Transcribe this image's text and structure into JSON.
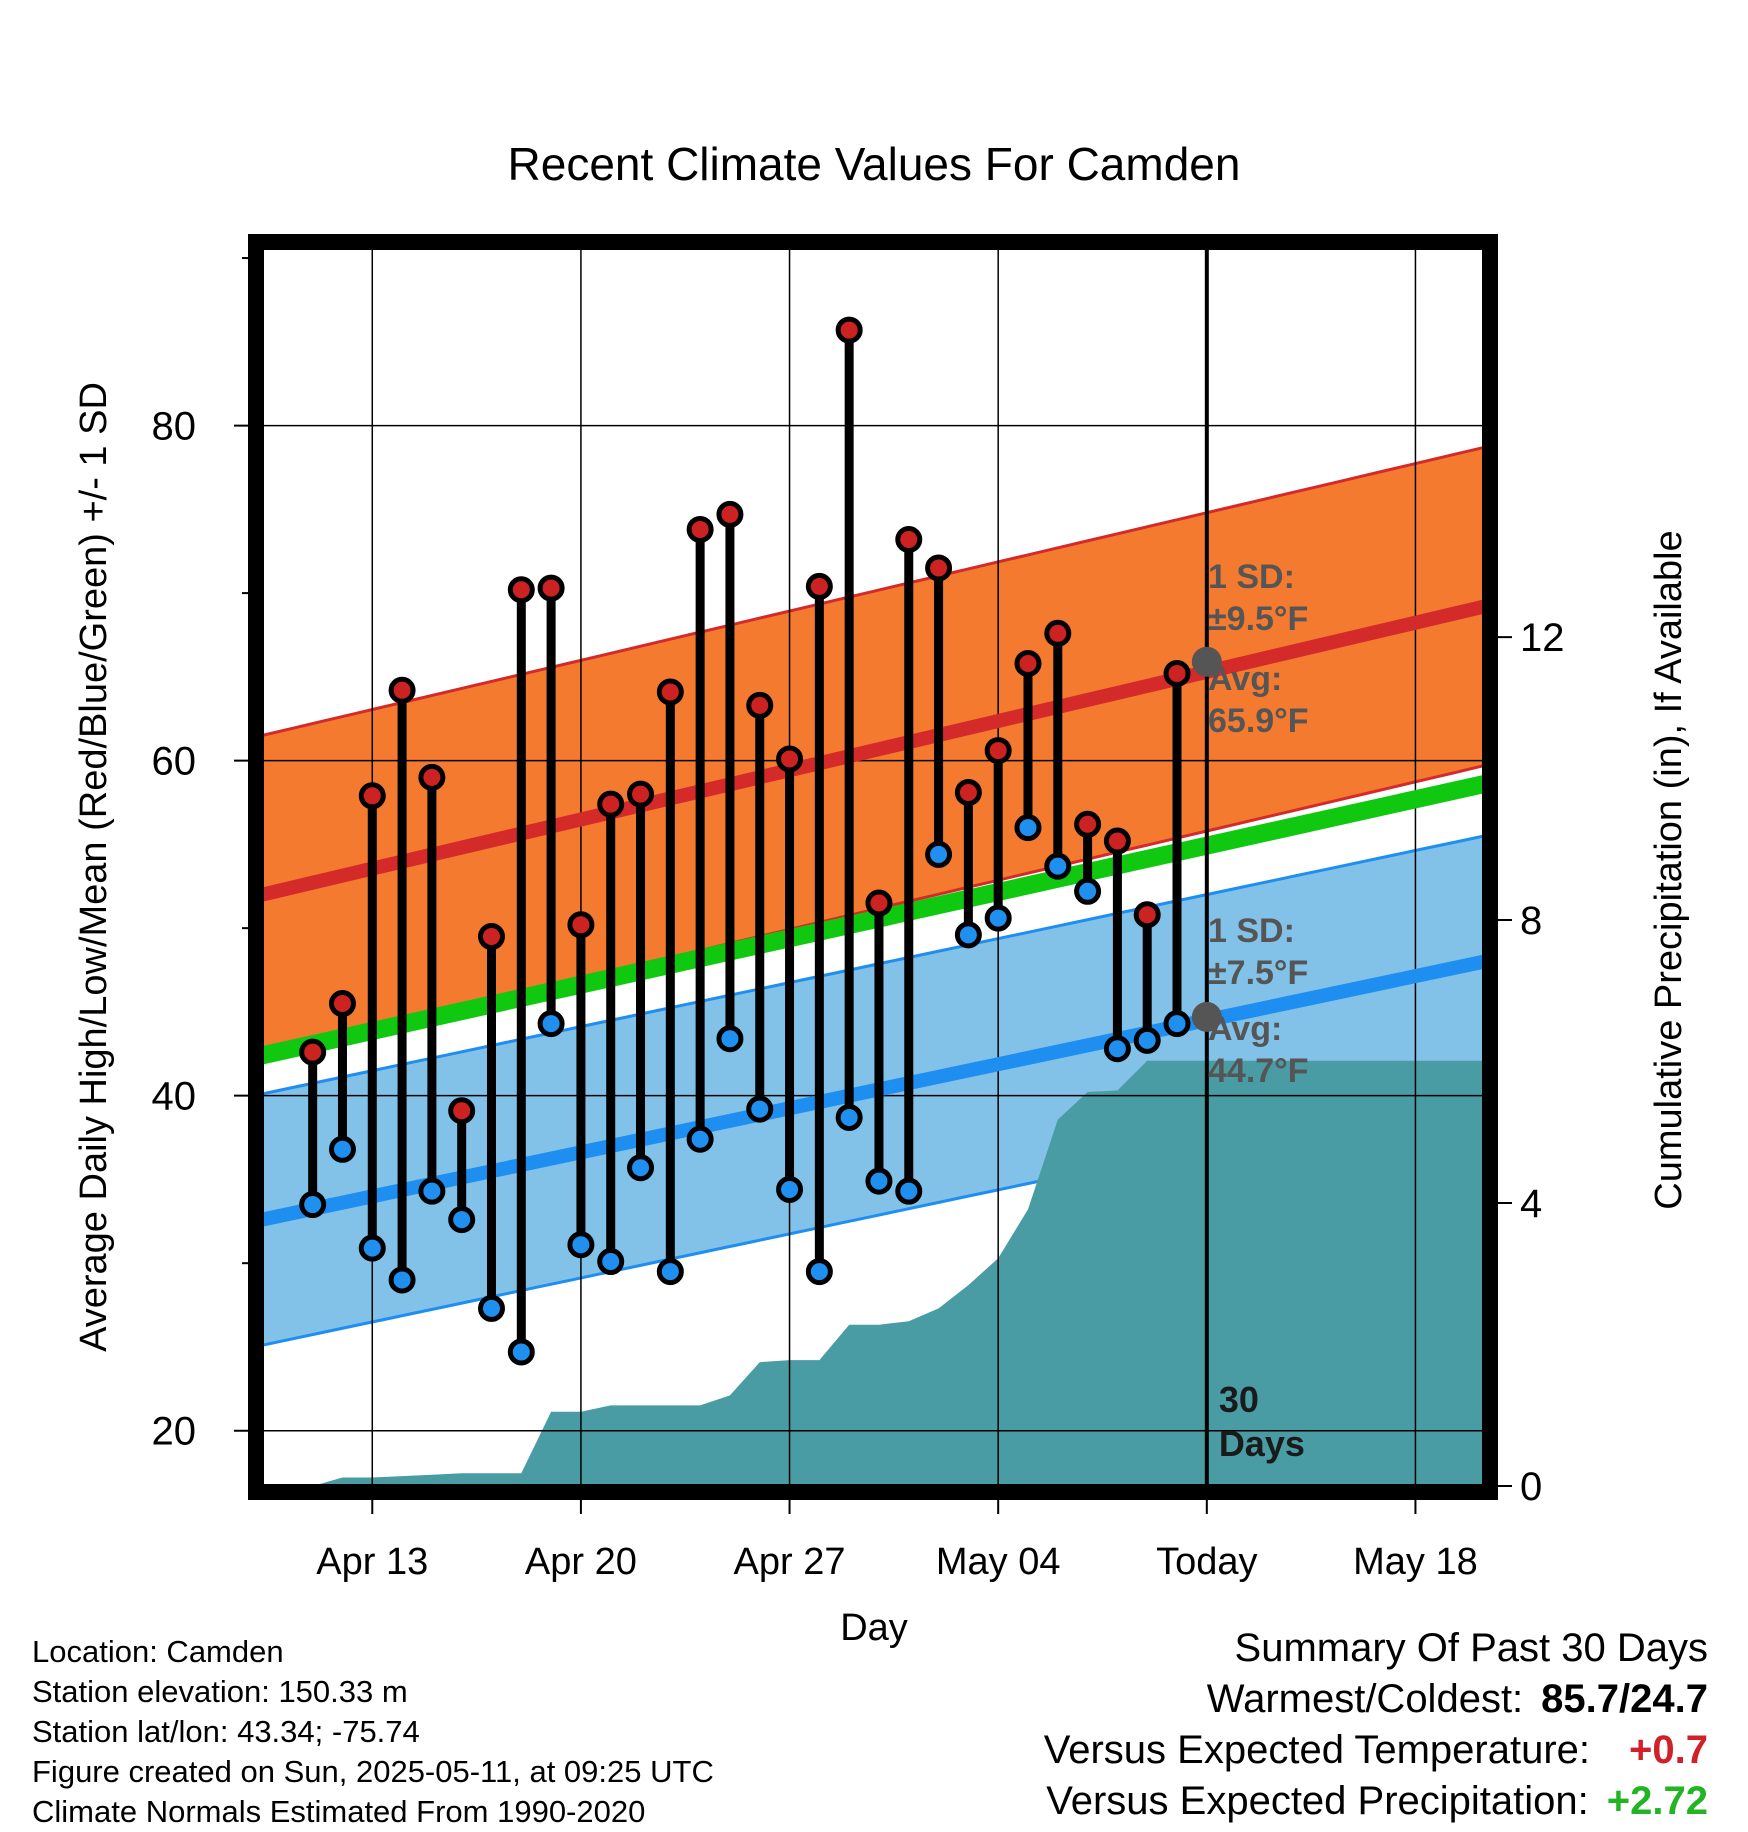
{
  "title": "Recent Climate Values For Camden",
  "xlabel": "Day",
  "ylabel_left": "Average Daily High/Low/Mean (Red/Blue/Green) +/- 1 SD",
  "ylabel_right": "Cumulative Precipitation (in), If Available",
  "today_label": "30 Days",
  "annotations": {
    "high_sd": "1 SD:",
    "high_sd_val": "±9.5°F",
    "high_avg": "Avg:",
    "high_avg_val": "65.9°F",
    "low_sd": "1 SD:",
    "low_sd_val": "±7.5°F",
    "low_avg": "Avg:",
    "low_avg_val": "44.7°F"
  },
  "footer": {
    "location": "Location: Camden",
    "elevation": "Station elevation: 150.33 m",
    "latlon": "Station lat/lon: 43.34; -75.74",
    "created": "Figure created on Sun, 2025-05-11, at 09:25 UTC",
    "normals": "Climate Normals Estimated From 1990-2020"
  },
  "summary": {
    "heading": "Summary Of Past 30 Days",
    "warm_cold_label": "Warmest/Coldest:",
    "warm_cold_value": "85.7/24.7",
    "temp_label": "Versus Expected Temperature:",
    "temp_value": "+0.7",
    "precip_label": "Versus Expected Precipitation:",
    "precip_value": "+2.72"
  },
  "colors": {
    "high_band": "#f47a30",
    "high_line": "#d42a2a",
    "low_band": "#82c2e8",
    "low_line": "#1e8ef0",
    "mean_line": "#10c810",
    "precip": "#4a9ca4",
    "high_dot": "#cc2222",
    "low_dot": "#2090f0",
    "annotation": "#555555"
  },
  "chart_data": {
    "type": "line",
    "x_axis": {
      "tick_labels": [
        "Apr 13",
        "Apr 20",
        "Apr 27",
        "May 04",
        "Today",
        "May 18"
      ],
      "tick_days": [
        3,
        10,
        17,
        24,
        31,
        38
      ],
      "range_days": [
        -0.7,
        40.3
      ]
    },
    "y_left": {
      "range": [
        16.7,
        90.6
      ],
      "ticks": [
        20,
        40,
        60,
        80
      ],
      "minor_ticks": [
        30,
        50,
        70,
        90
      ]
    },
    "y_right": {
      "range": [
        0,
        17.5
      ],
      "ticks": [
        0,
        4,
        8,
        12
      ]
    },
    "days": [
      1,
      2,
      3,
      4,
      5,
      6,
      7,
      8,
      9,
      10,
      11,
      12,
      13,
      14,
      15,
      16,
      17,
      18,
      19,
      20,
      21,
      22,
      23,
      24,
      25,
      26,
      27,
      28,
      29,
      30
    ],
    "highs": [
      42.6,
      45.5,
      57.9,
      64.2,
      59.0,
      39.1,
      49.5,
      70.2,
      70.3,
      50.2,
      57.4,
      58.0,
      64.1,
      73.8,
      74.7,
      63.3,
      60.1,
      70.4,
      85.7,
      51.5,
      73.2,
      71.5,
      58.1,
      60.6,
      65.8,
      67.6,
      56.2,
      55.2,
      50.8,
      65.2
    ],
    "lows": [
      33.5,
      36.8,
      30.9,
      29.0,
      34.3,
      32.6,
      27.3,
      24.7,
      44.3,
      31.1,
      30.1,
      35.7,
      29.5,
      37.4,
      43.4,
      39.2,
      34.4,
      29.5,
      38.7,
      34.9,
      34.3,
      54.4,
      49.6,
      50.6,
      56.0,
      53.7,
      52.2,
      42.8,
      43.3,
      44.3
    ],
    "normal_high": {
      "start": 52.0,
      "end": 69.2,
      "sd": 9.5,
      "today_value": 65.9
    },
    "normal_low": {
      "start": 32.6,
      "end": 48.0,
      "sd": 7.5,
      "today_value": 44.7
    },
    "normal_mean": {
      "start": 42.4,
      "end": 58.6
    },
    "precip_cumulative": {
      "days": [
        0,
        1,
        2,
        3,
        4,
        5,
        6,
        7,
        8,
        9,
        10,
        11,
        12,
        13,
        14,
        15,
        16,
        17,
        18,
        19,
        20,
        21,
        22,
        23,
        24,
        25,
        26,
        27,
        28,
        29,
        30,
        41
      ],
      "values": [
        0,
        0,
        0.12,
        0.12,
        0.14,
        0.16,
        0.18,
        0.18,
        0.18,
        1.05,
        1.05,
        1.14,
        1.14,
        1.14,
        1.14,
        1.28,
        1.75,
        1.78,
        1.78,
        2.28,
        2.28,
        2.33,
        2.51,
        2.84,
        3.22,
        3.91,
        5.18,
        5.57,
        5.59,
        6.01,
        6.01,
        6.01
      ]
    }
  }
}
